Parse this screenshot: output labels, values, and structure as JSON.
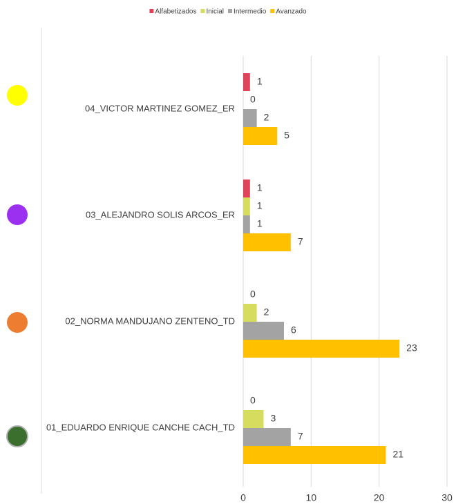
{
  "chart_data": {
    "type": "bar",
    "orientation": "horizontal",
    "categories": [
      "04_VICTOR MARTINEZ GOMEZ_ER",
      "03_ALEJANDRO SOLIS ARCOS_ER",
      "02_NORMA MANDUJANO ZENTENO_TD",
      "01_EDUARDO ENRIQUE CANCHE CACH_TD"
    ],
    "series": [
      {
        "name": "Alfabetizados",
        "color": "#e0435a",
        "values": [
          1,
          1,
          0,
          0
        ]
      },
      {
        "name": "Inicial",
        "color": "#d5dc5e",
        "values": [
          0,
          1,
          2,
          3
        ]
      },
      {
        "name": "Intermedio",
        "color": "#a3a3a3",
        "values": [
          2,
          1,
          6,
          7
        ]
      },
      {
        "name": "Avanzado",
        "color": "#ffc000",
        "values": [
          5,
          7,
          23,
          21
        ]
      }
    ],
    "xlim": [
      0,
      30
    ],
    "xticks": [
      0,
      10,
      20,
      30
    ],
    "grid": true,
    "legend": "top"
  }
}
